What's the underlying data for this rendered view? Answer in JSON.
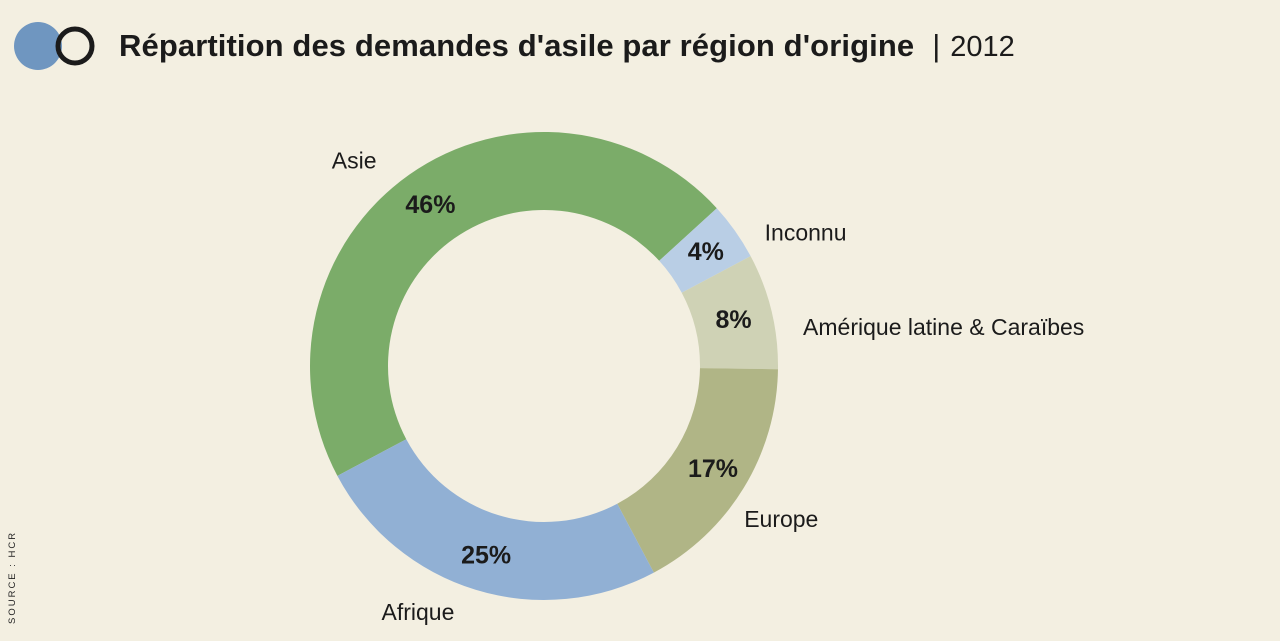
{
  "header": {
    "title": "Répartition des demandes d'asile par région d'origine",
    "separator": "|",
    "year": "2012"
  },
  "source": "SOURCE : HCR",
  "logo": {
    "icon": "two-circles-logo-icon",
    "fill_color": "#6f96c0",
    "ring_color": "#1b1b1b"
  },
  "chart_data": {
    "type": "pie",
    "variant": "donut",
    "title": "Répartition des demandes d'asile par région d'origine",
    "categories": [
      "Asie",
      "Inconnu",
      "Amérique latine & Caraïbes",
      "Europe",
      "Afrique"
    ],
    "values": [
      46,
      4,
      8,
      17,
      25
    ],
    "value_labels": [
      "46%",
      "4%",
      "8%",
      "17%",
      "25%"
    ],
    "colors": [
      "#7bac69",
      "#b9cee5",
      "#cfd2b5",
      "#b0b586",
      "#91b0d4"
    ],
    "background": "#f3efe1"
  }
}
